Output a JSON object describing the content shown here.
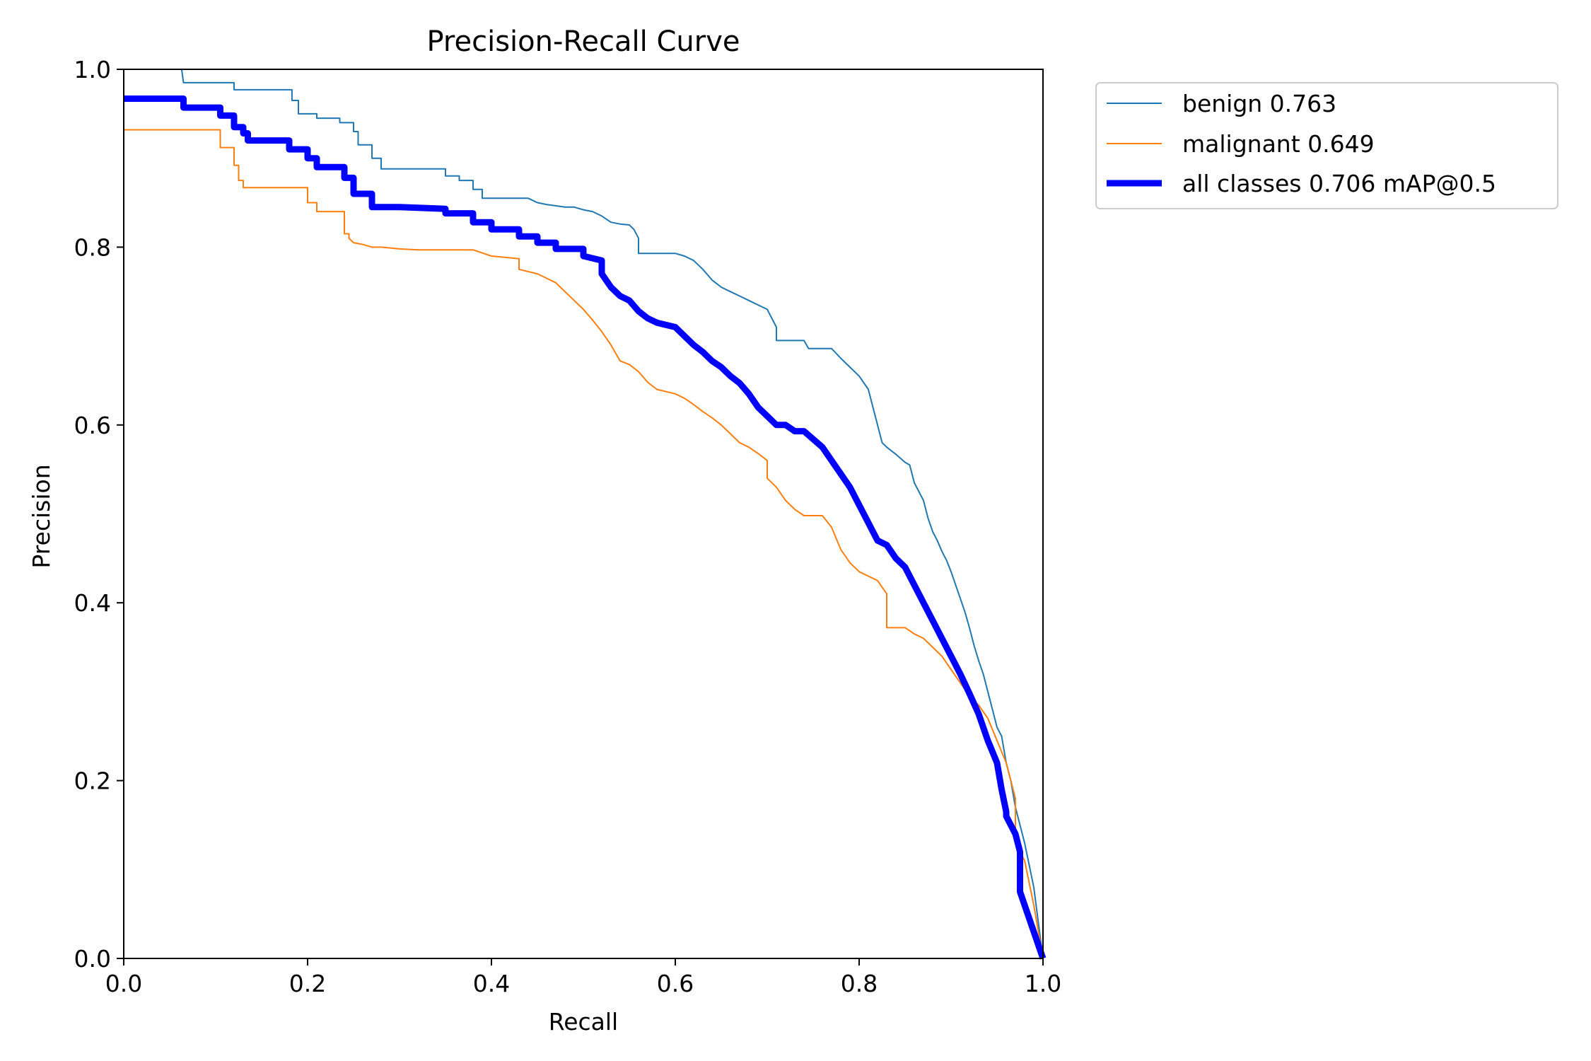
{
  "chart_data": {
    "type": "line",
    "title": "Precision-Recall Curve",
    "xlabel": "Recall",
    "ylabel": "Precision",
    "xlim": [
      0,
      1
    ],
    "ylim": [
      0,
      1
    ],
    "xticks": [
      "0.0",
      "0.2",
      "0.4",
      "0.6",
      "0.8",
      "1.0"
    ],
    "yticks": [
      "0.0",
      "0.2",
      "0.4",
      "0.6",
      "0.8",
      "1.0"
    ],
    "grid": false,
    "legend_position": "outside-upper-right",
    "series": [
      {
        "name": "benign",
        "legend_label": "benign 0.763",
        "color": "#1f77b4",
        "style": "thin",
        "x": [
          0,
          0.063,
          0.065,
          0.12,
          0.12,
          0.183,
          0.183,
          0.19,
          0.19,
          0.21,
          0.21,
          0.235,
          0.235,
          0.25,
          0.25,
          0.255,
          0.255,
          0.27,
          0.27,
          0.28,
          0.28,
          0.35,
          0.35,
          0.365,
          0.365,
          0.38,
          0.38,
          0.39,
          0.39,
          0.44,
          0.45,
          0.46,
          0.48,
          0.49,
          0.5,
          0.51,
          0.52,
          0.53,
          0.54,
          0.55,
          0.555,
          0.56,
          0.56,
          0.6,
          0.61,
          0.62,
          0.63,
          0.64,
          0.65,
          0.66,
          0.67,
          0.68,
          0.69,
          0.7,
          0.705,
          0.71,
          0.71,
          0.74,
          0.745,
          0.77,
          0.78,
          0.79,
          0.8,
          0.81,
          0.815,
          0.82,
          0.825,
          0.83,
          0.84,
          0.85,
          0.855,
          0.86,
          0.87,
          0.875,
          0.88,
          0.885,
          0.89,
          0.895,
          0.9,
          0.905,
          0.91,
          0.915,
          0.92,
          0.925,
          0.93,
          0.935,
          0.94,
          0.945,
          0.95,
          0.955,
          0.96,
          0.965,
          0.97,
          0.98,
          0.99,
          1.0
        ],
        "y": [
          1.0,
          1.0,
          0.985,
          0.985,
          0.977,
          0.977,
          0.965,
          0.965,
          0.95,
          0.95,
          0.945,
          0.945,
          0.94,
          0.94,
          0.93,
          0.93,
          0.915,
          0.915,
          0.9,
          0.9,
          0.888,
          0.888,
          0.88,
          0.88,
          0.875,
          0.875,
          0.865,
          0.865,
          0.855,
          0.855,
          0.85,
          0.848,
          0.845,
          0.845,
          0.842,
          0.84,
          0.835,
          0.828,
          0.826,
          0.825,
          0.82,
          0.81,
          0.793,
          0.793,
          0.79,
          0.785,
          0.775,
          0.763,
          0.755,
          0.75,
          0.745,
          0.74,
          0.735,
          0.73,
          0.72,
          0.71,
          0.695,
          0.695,
          0.686,
          0.686,
          0.675,
          0.665,
          0.655,
          0.64,
          0.62,
          0.6,
          0.58,
          0.575,
          0.567,
          0.558,
          0.555,
          0.535,
          0.515,
          0.495,
          0.48,
          0.47,
          0.458,
          0.448,
          0.435,
          0.42,
          0.405,
          0.39,
          0.372,
          0.352,
          0.335,
          0.32,
          0.3,
          0.28,
          0.26,
          0.25,
          0.22,
          0.2,
          0.17,
          0.13,
          0.08,
          0.0
        ]
      },
      {
        "name": "malignant",
        "legend_label": "malignant 0.649",
        "color": "#ff7f0e",
        "style": "thin",
        "x": [
          0,
          0.105,
          0.105,
          0.12,
          0.12,
          0.125,
          0.125,
          0.13,
          0.13,
          0.2,
          0.2,
          0.21,
          0.21,
          0.24,
          0.24,
          0.245,
          0.245,
          0.25,
          0.26,
          0.27,
          0.28,
          0.3,
          0.32,
          0.38,
          0.4,
          0.43,
          0.43,
          0.45,
          0.46,
          0.47,
          0.48,
          0.49,
          0.5,
          0.51,
          0.52,
          0.53,
          0.54,
          0.55,
          0.56,
          0.57,
          0.58,
          0.6,
          0.61,
          0.62,
          0.63,
          0.64,
          0.65,
          0.66,
          0.67,
          0.68,
          0.69,
          0.7,
          0.7,
          0.71,
          0.72,
          0.73,
          0.74,
          0.76,
          0.77,
          0.78,
          0.79,
          0.8,
          0.81,
          0.82,
          0.83,
          0.83,
          0.85,
          0.86,
          0.87,
          0.88,
          0.89,
          0.9,
          0.91,
          0.92,
          0.93,
          0.94,
          0.95,
          0.96,
          0.97,
          0.97,
          0.98,
          0.99,
          1.0
        ],
        "y": [
          0.932,
          0.932,
          0.912,
          0.912,
          0.892,
          0.892,
          0.875,
          0.875,
          0.867,
          0.867,
          0.85,
          0.85,
          0.84,
          0.84,
          0.815,
          0.815,
          0.81,
          0.805,
          0.803,
          0.8,
          0.8,
          0.798,
          0.797,
          0.797,
          0.79,
          0.787,
          0.775,
          0.77,
          0.765,
          0.76,
          0.75,
          0.74,
          0.73,
          0.718,
          0.705,
          0.69,
          0.672,
          0.668,
          0.66,
          0.648,
          0.64,
          0.635,
          0.63,
          0.623,
          0.615,
          0.608,
          0.6,
          0.59,
          0.58,
          0.575,
          0.568,
          0.56,
          0.54,
          0.53,
          0.515,
          0.505,
          0.498,
          0.498,
          0.485,
          0.46,
          0.445,
          0.435,
          0.43,
          0.425,
          0.41,
          0.372,
          0.372,
          0.365,
          0.36,
          0.35,
          0.34,
          0.325,
          0.31,
          0.295,
          0.285,
          0.27,
          0.245,
          0.22,
          0.18,
          0.13,
          0.11,
          0.06,
          0.0
        ]
      },
      {
        "name": "all classes",
        "legend_label": "all classes 0.706 mAP@0.5",
        "color": "#0000ff",
        "style": "thick",
        "x": [
          0,
          0.065,
          0.065,
          0.105,
          0.105,
          0.12,
          0.12,
          0.13,
          0.13,
          0.135,
          0.135,
          0.18,
          0.18,
          0.2,
          0.2,
          0.21,
          0.21,
          0.24,
          0.24,
          0.25,
          0.25,
          0.27,
          0.27,
          0.3,
          0.35,
          0.35,
          0.38,
          0.38,
          0.4,
          0.4,
          0.43,
          0.43,
          0.45,
          0.45,
          0.47,
          0.47,
          0.5,
          0.5,
          0.52,
          0.52,
          0.53,
          0.54,
          0.55,
          0.56,
          0.57,
          0.58,
          0.6,
          0.61,
          0.62,
          0.63,
          0.64,
          0.65,
          0.66,
          0.67,
          0.68,
          0.69,
          0.7,
          0.71,
          0.72,
          0.73,
          0.74,
          0.76,
          0.77,
          0.78,
          0.79,
          0.8,
          0.81,
          0.82,
          0.83,
          0.84,
          0.85,
          0.86,
          0.87,
          0.88,
          0.89,
          0.9,
          0.91,
          0.92,
          0.93,
          0.94,
          0.95,
          0.955,
          0.96,
          0.96,
          0.97,
          0.975,
          0.975,
          1.0
        ],
        "y": [
          0.967,
          0.967,
          0.957,
          0.957,
          0.948,
          0.948,
          0.935,
          0.935,
          0.928,
          0.928,
          0.92,
          0.92,
          0.91,
          0.91,
          0.9,
          0.9,
          0.89,
          0.89,
          0.878,
          0.878,
          0.86,
          0.86,
          0.845,
          0.845,
          0.843,
          0.838,
          0.838,
          0.828,
          0.828,
          0.82,
          0.82,
          0.812,
          0.812,
          0.805,
          0.805,
          0.798,
          0.798,
          0.79,
          0.785,
          0.77,
          0.755,
          0.745,
          0.74,
          0.728,
          0.72,
          0.715,
          0.71,
          0.7,
          0.69,
          0.682,
          0.672,
          0.665,
          0.655,
          0.647,
          0.635,
          0.62,
          0.61,
          0.6,
          0.6,
          0.593,
          0.593,
          0.575,
          0.56,
          0.545,
          0.53,
          0.51,
          0.49,
          0.47,
          0.465,
          0.45,
          0.44,
          0.42,
          0.4,
          0.38,
          0.36,
          0.34,
          0.32,
          0.298,
          0.275,
          0.245,
          0.22,
          0.19,
          0.165,
          0.16,
          0.14,
          0.12,
          0.075,
          0.0
        ]
      }
    ]
  }
}
